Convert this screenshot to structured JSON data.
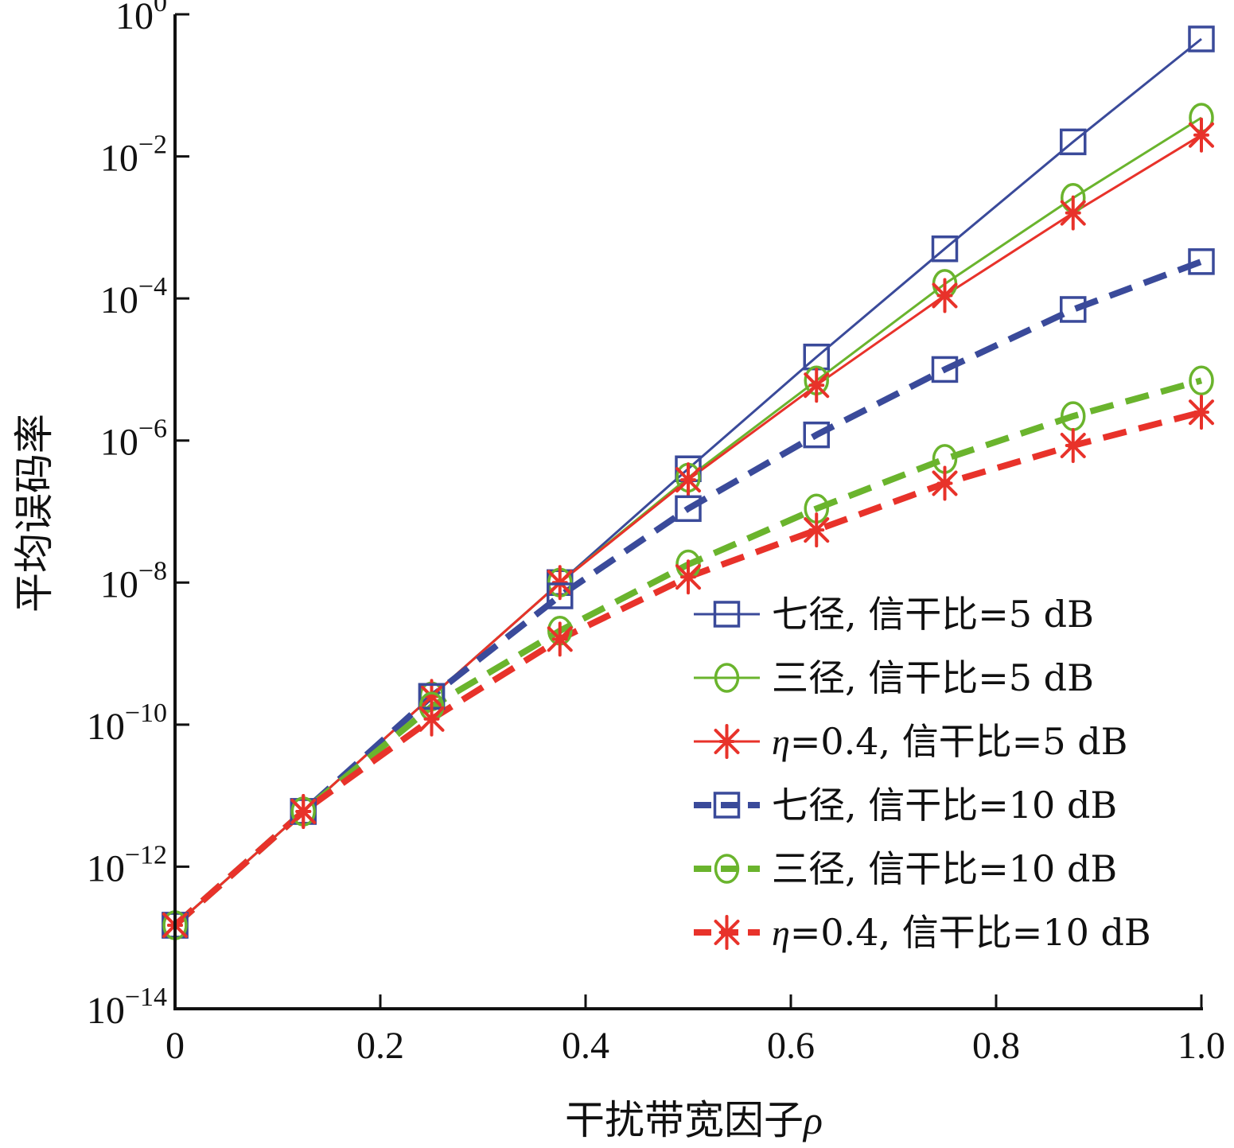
{
  "chart_data": {
    "type": "line",
    "title": "",
    "xlabel": "干扰带宽因子",
    "xlabel_symbol": "ρ",
    "ylabel": "平均误码率",
    "x_scale": "linear",
    "y_scale": "log",
    "xlim": [
      0,
      1.0
    ],
    "ylim_exponent": [
      -14,
      0
    ],
    "x_ticks": [
      "0",
      "0.2",
      "0.4",
      "0.6",
      "0.8",
      "1.0"
    ],
    "y_tick_base": "10",
    "y_tick_exponents": [
      "0",
      "-2",
      "-4",
      "-6",
      "-8",
      "-10",
      "-12",
      "-14"
    ],
    "grid": false,
    "legend_position": "bottom-right",
    "x": [
      0,
      0.125,
      0.25,
      0.375,
      0.5,
      0.625,
      0.75,
      0.875,
      1.0
    ],
    "series": [
      {
        "name": "七径, 信干比=5 dB",
        "label_symbol": "",
        "label_text": "七径, 信干比=5 dB",
        "color": "#3a4a9a",
        "line": "solid",
        "marker": "square",
        "y": [
          1.5e-13,
          6e-12,
          2.5e-10,
          1e-08,
          4e-07,
          1.5e-05,
          0.0005,
          0.016,
          0.45
        ]
      },
      {
        "name": "三径, 信干比=5 dB",
        "label_symbol": "",
        "label_text": "三径, 信干比=5 dB",
        "color": "#6ab42d",
        "line": "solid",
        "marker": "circle",
        "y": [
          1.5e-13,
          6e-12,
          2.5e-10,
          1e-08,
          3e-07,
          7e-06,
          0.00016,
          0.0026,
          0.035
        ]
      },
      {
        "name": "η=0.4, 信干比=5 dB",
        "label_symbol": "η",
        "label_text": "=0.4, 信干比=5 dB",
        "color": "#e8322a",
        "line": "solid",
        "marker": "asterisk",
        "y": [
          1.5e-13,
          6e-12,
          2.5e-10,
          1e-08,
          2.8e-07,
          6e-06,
          0.00011,
          0.0016,
          0.02
        ]
      },
      {
        "name": "七径, 信干比=10 dB",
        "label_symbol": "",
        "label_text": "七径, 信干比=10 dB",
        "color": "#3a4a9a",
        "line": "dashed",
        "marker": "square",
        "y": [
          1.5e-13,
          6e-12,
          2.5e-10,
          6.5e-09,
          1.1e-07,
          1.2e-06,
          1e-05,
          7e-05,
          0.00033
        ]
      },
      {
        "name": "三径, 信干比=10 dB",
        "label_symbol": "",
        "label_text": "三径, 信干比=10 dB",
        "color": "#6ab42d",
        "line": "dashed",
        "marker": "circle",
        "y": [
          1.5e-13,
          6e-12,
          1.8e-10,
          2.1e-09,
          1.8e-08,
          1.1e-07,
          5.5e-07,
          2.2e-06,
          7e-06
        ]
      },
      {
        "name": "η=0.4, 信干比=10 dB",
        "label_symbol": "η",
        "label_text": "=0.4, 信干比=10 dB",
        "color": "#e8322a",
        "line": "dashed",
        "marker": "asterisk",
        "y": [
          1.5e-13,
          6e-12,
          1.2e-10,
          1.6e-09,
          1.2e-08,
          5.5e-08,
          2.5e-07,
          8.5e-07,
          2.5e-06
        ]
      }
    ]
  }
}
